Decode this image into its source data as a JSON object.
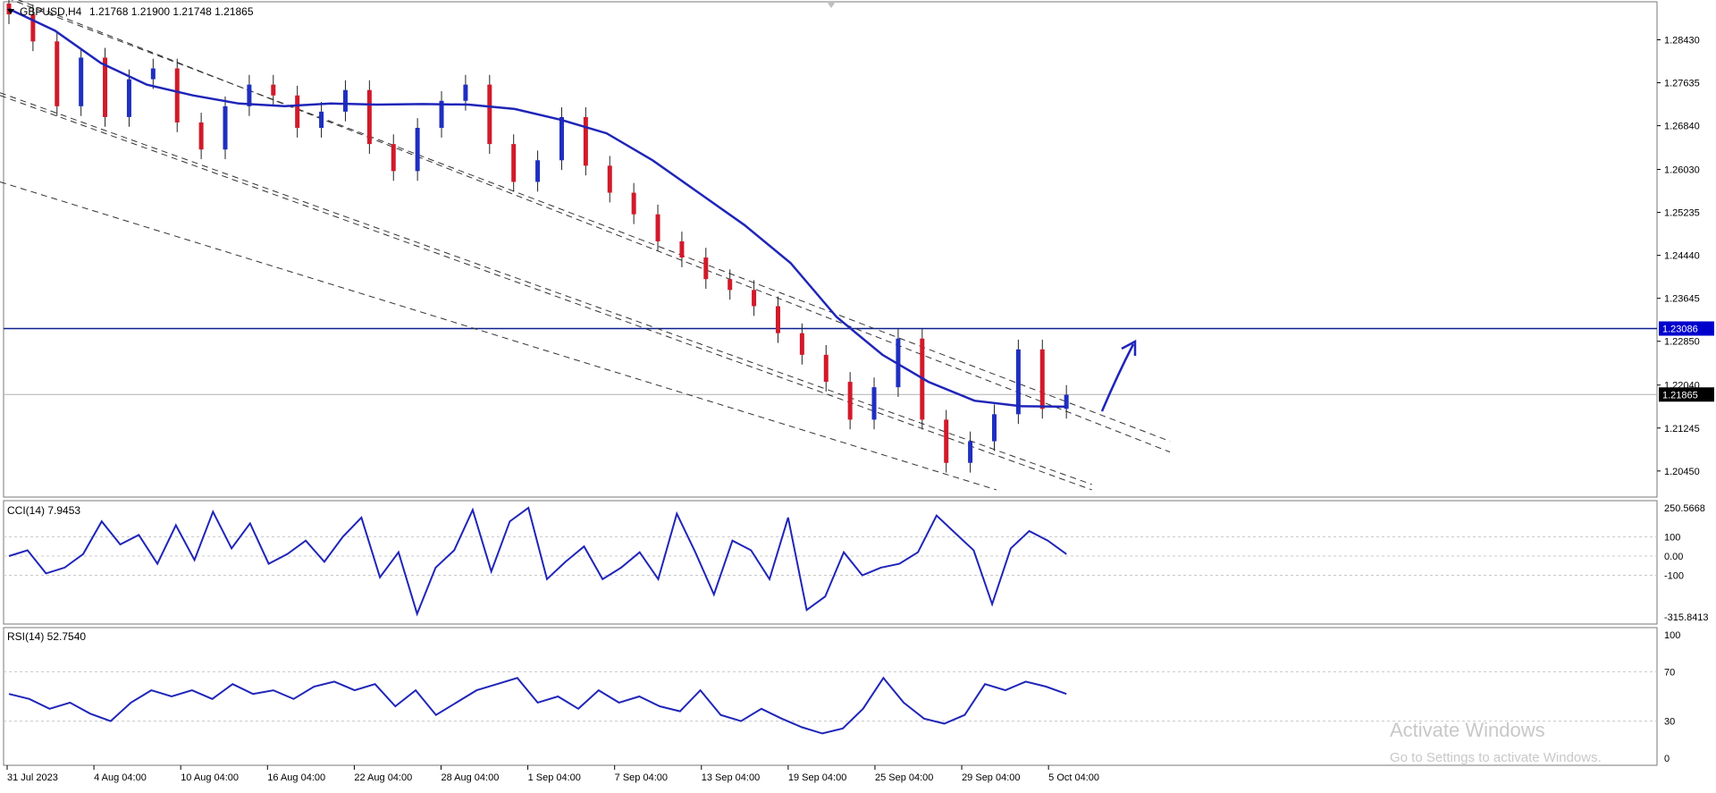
{
  "chart_data": [
    {
      "type": "candlestick",
      "panel": "main",
      "symbol_label": "GBPUSD,H4",
      "ohlc_label": "1.21768 1.21900 1.21748 1.21865",
      "ylim": [
        1.2,
        1.291
      ],
      "y_ticks": [
        "1.28430",
        "1.27635",
        "1.26840",
        "1.26030",
        "1.25235",
        "1.24440",
        "1.23645",
        "1.22850",
        "1.22040",
        "1.21245",
        "1.20450"
      ],
      "price_labels": [
        {
          "text": "1.23086",
          "value": 1.23086,
          "color": "#0000cd"
        },
        {
          "text": "1.21865",
          "value": 1.21865,
          "color": "#000000"
        }
      ],
      "horizontal_line": {
        "value": 1.23086,
        "color": "#0b1f8c"
      },
      "moving_average": {
        "color": "#1f25b8",
        "values": [
          1.29,
          1.286,
          1.28,
          1.276,
          1.274,
          1.2725,
          1.272,
          1.2725,
          1.2723,
          1.2724,
          1.2723,
          1.2715,
          1.2695,
          1.267,
          1.262,
          1.256,
          1.25,
          1.243,
          1.233,
          1.226,
          1.221,
          1.2175,
          1.2165,
          1.2164
        ]
      },
      "candle_close": [
        1.289,
        1.284,
        1.272,
        1.281,
        1.27,
        1.277,
        1.279,
        1.269,
        1.264,
        1.272,
        1.276,
        1.274,
        1.268,
        1.271,
        1.275,
        1.265,
        1.26,
        1.268,
        1.273,
        1.276,
        1.265,
        1.258,
        1.262,
        1.27,
        1.261,
        1.256,
        1.252,
        1.247,
        1.244,
        1.24,
        1.238,
        1.235,
        1.23,
        1.226,
        1.221,
        1.214,
        1.22,
        1.229,
        1.214,
        1.206,
        1.21,
        1.215,
        1.227,
        1.216,
        1.2186
      ],
      "trendlines": [
        {
          "style": "dashed",
          "from": [
            "31 Jul 2023",
            1.292
          ],
          "to": [
            "11 Oct 2023",
            1.21
          ]
        },
        {
          "style": "dashed",
          "from": [
            "31 Jul 2023",
            1.2925
          ],
          "to": [
            "11 Oct 2023",
            1.208
          ]
        },
        {
          "style": "dashed",
          "from": [
            "28 Aug 2023",
            1.2745
          ],
          "to": [
            "7 Oct 2023",
            1.202
          ]
        },
        {
          "style": "dashed",
          "from": [
            "28 Aug 2023",
            1.274
          ],
          "to": [
            "7 Oct 2023",
            1.201
          ]
        },
        {
          "style": "dashed",
          "from": [
            "28 Aug 2023",
            1.258
          ],
          "to": [
            "1 Oct 2023",
            1.201
          ]
        }
      ],
      "annotation": "arrow pointing up"
    },
    {
      "type": "line",
      "panel": "indicator",
      "label": "CCI(14) 7.9453",
      "y_ticks": [
        "250.5668",
        "100",
        "0.00",
        "-100",
        "-315.8413"
      ],
      "ylim": [
        -315.8413,
        250.5668
      ],
      "levels": [
        100,
        0,
        -100
      ],
      "values": [
        0,
        30,
        -90,
        -60,
        10,
        180,
        60,
        110,
        -40,
        160,
        -20,
        230,
        40,
        170,
        -40,
        10,
        80,
        -30,
        100,
        200,
        -110,
        20,
        -300,
        -60,
        30,
        240,
        -80,
        180,
        250,
        -120,
        -30,
        50,
        -120,
        -60,
        20,
        -120,
        220,
        20,
        -200,
        80,
        30,
        -120,
        200,
        -280,
        -210,
        20,
        -100,
        -60,
        -40,
        20,
        210,
        120,
        30,
        -250,
        40,
        130,
        80,
        10
      ]
    },
    {
      "type": "line",
      "panel": "indicator",
      "label": "RSI(14) 52.7540",
      "y_ticks": [
        "100",
        "70",
        "30",
        "0"
      ],
      "ylim": [
        0,
        100
      ],
      "levels": [
        70,
        30
      ],
      "values": [
        52,
        48,
        40,
        45,
        36,
        30,
        45,
        55,
        50,
        55,
        48,
        60,
        52,
        55,
        48,
        58,
        62,
        55,
        60,
        42,
        55,
        35,
        45,
        55,
        60,
        65,
        45,
        50,
        40,
        55,
        45,
        50,
        42,
        38,
        55,
        35,
        30,
        40,
        32,
        25,
        20,
        24,
        40,
        65,
        45,
        32,
        28,
        35,
        60,
        55,
        62,
        58,
        52
      ]
    }
  ],
  "x_axis": {
    "tick_labels": [
      "31 Jul 2023",
      "4 Aug 04:00",
      "10 Aug 04:00",
      "16 Aug 04:00",
      "22 Aug 04:00",
      "28 Aug 04:00",
      "1 Sep 04:00",
      "7 Sep 04:00",
      "13 Sep 04:00",
      "19 Sep 04:00",
      "25 Sep 04:00",
      "29 Sep 04:00",
      "5 Oct 04:00"
    ]
  },
  "watermark": {
    "line1": "Activate Windows",
    "line2": "Go to Settings to activate Windows."
  }
}
